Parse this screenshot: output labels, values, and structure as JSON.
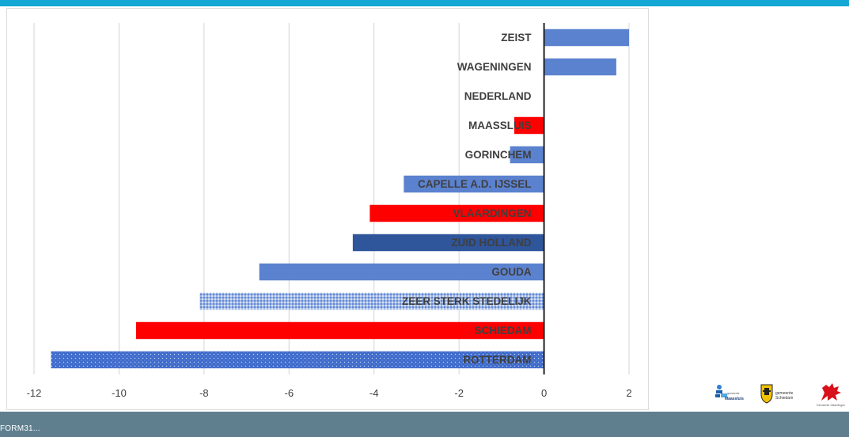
{
  "chart_data": {
    "type": "bar",
    "orientation": "horizontal",
    "categories": [
      "ZEIST",
      "WAGENINGEN",
      "NEDERLAND",
      "MAASSLUIS",
      "GORINCHEM",
      "CAPELLE A.D. IJSSEL",
      "VLAARDINGEN",
      "ZUID HOLLAND",
      "GOUDA",
      "ZEER STERK STEDELIJK",
      "SCHIEDAM",
      "ROTTERDAM"
    ],
    "values": [
      2.0,
      1.7,
      0.0,
      -0.7,
      -0.8,
      -3.3,
      -4.1,
      -4.5,
      -6.7,
      -8.1,
      -9.6,
      -11.6
    ],
    "bar_colors": [
      "#5b82cf",
      "#5b82cf",
      "#5b82cf",
      "#ff0000",
      "#5b82cf",
      "#5b82cf",
      "#ff0000",
      "#2f559b",
      "#5b82cf",
      "#5b82cf",
      "#ff0000",
      "#3d6acb"
    ],
    "bar_patterns": [
      "solid",
      "solid",
      "solid",
      "solid",
      "solid",
      "solid",
      "solid",
      "solid",
      "solid",
      "dotted-light",
      "solid",
      "dotted-dark"
    ],
    "xlim": [
      -12,
      2
    ],
    "xticks": [
      "-12",
      "-10",
      "-8",
      "-6",
      "-4",
      "-2",
      "0",
      "2"
    ],
    "xtick_values": [
      -12,
      -10,
      -8,
      -6,
      -4,
      -2,
      0,
      2
    ],
    "grid": "vertical",
    "title": "",
    "xlabel": "",
    "ylabel": ""
  },
  "footer": {
    "text": "FORM31..."
  },
  "logos": [
    {
      "name": "Maassluis",
      "text": "Maassluis",
      "small": "gemeente"
    },
    {
      "name": "Schiedam",
      "text": "gemeente Schiedam"
    },
    {
      "name": "Vlaardingen",
      "text": "Gemeente Vlaardingen"
    }
  ]
}
